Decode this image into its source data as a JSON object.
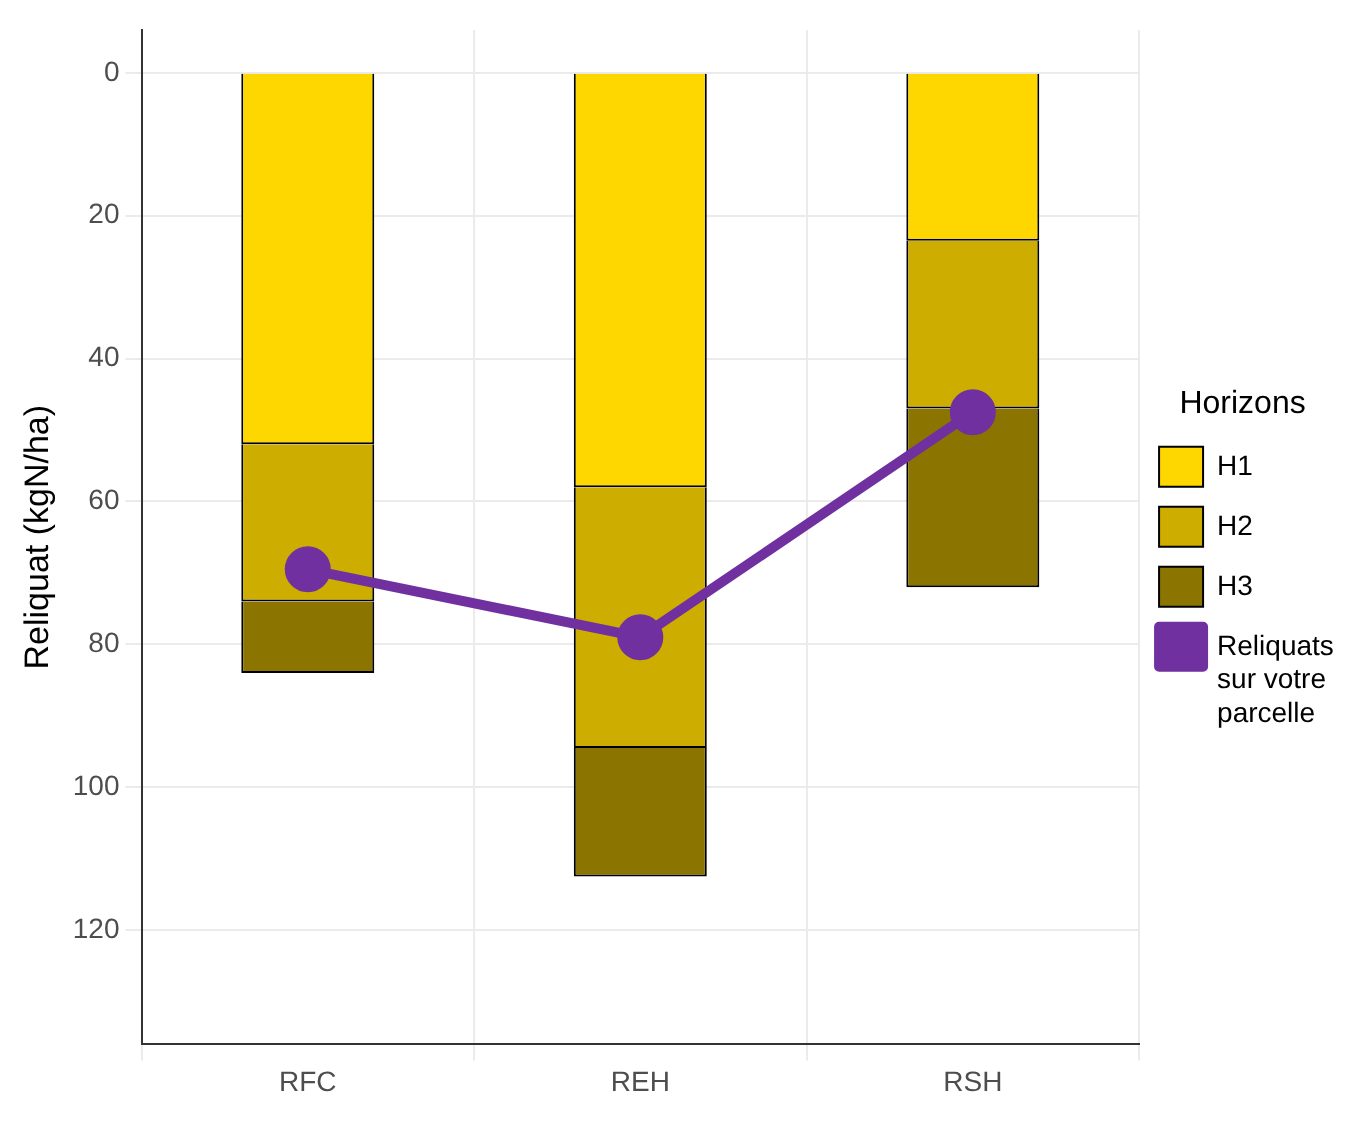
{
  "chart_data": {
    "type": "bar",
    "stacked": true,
    "ylabel": "Reliquat (kgN/ha)",
    "legend_title": "Horizons",
    "legend": "right",
    "grid": true,
    "marker": "circle",
    "line_style": "solid",
    "categories": [
      "RFC",
      "REH",
      "RSH"
    ],
    "ylim": [
      136,
      -6
    ],
    "yticks": [
      0,
      20,
      40,
      60,
      80,
      100,
      120
    ],
    "series": [
      {
        "name": "H1",
        "color": "#ffd700",
        "values": [
          52,
          58,
          23.5
        ]
      },
      {
        "name": "H2",
        "color": "#cdad00",
        "values": [
          22,
          36.5,
          23.5
        ]
      },
      {
        "name": "H3",
        "color": "#8b7500",
        "values": [
          10,
          18,
          25
        ]
      },
      {
        "name": "Reliquats sur votre parcelle",
        "type": "line",
        "color": "#7030a0",
        "values": [
          69.5,
          79,
          47.5
        ]
      }
    ]
  }
}
